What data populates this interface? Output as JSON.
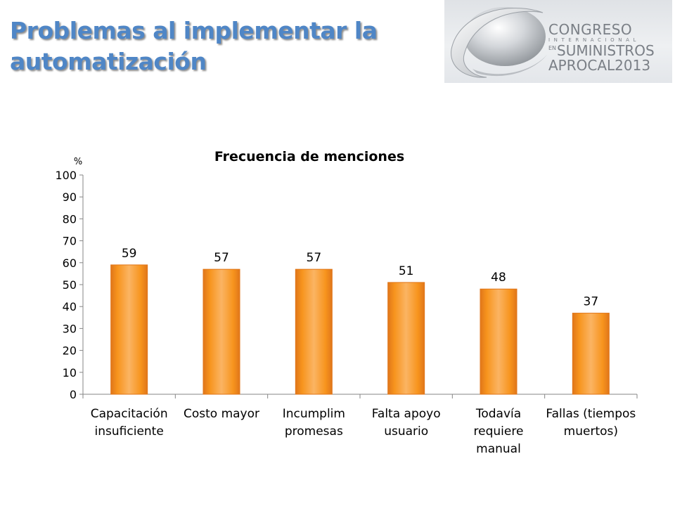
{
  "header": {
    "title_line1": "Problemas al implementar la",
    "title_line2": "automatización"
  },
  "logo": {
    "line1": "CONGRESO",
    "line2": "INTERNACIONAL",
    "line3_small": "EN",
    "line3": "SUMINISTROS",
    "line4": "APROCAL2013",
    "colors": {
      "text": "#7a7f86",
      "background": "#e6e8eb"
    }
  },
  "chart_data": {
    "type": "bar",
    "title": "Frecuencia de menciones",
    "ylabel": "%",
    "xlabel": "",
    "ylim": [
      0,
      100
    ],
    "yticks": [
      0,
      10,
      20,
      30,
      40,
      50,
      60,
      70,
      80,
      90,
      100
    ],
    "categories": [
      [
        "Capacitación",
        "insuficiente"
      ],
      [
        "Costo mayor"
      ],
      [
        "Incumplim",
        "promesas"
      ],
      [
        "Falta apoyo",
        "usuario"
      ],
      [
        "Todavía",
        "requiere",
        "manual"
      ],
      [
        "Fallas (tiempos",
        "muertos)"
      ]
    ],
    "values": [
      59,
      57,
      57,
      51,
      48,
      37
    ],
    "data_labels": [
      "59",
      "57",
      "57",
      "51",
      "48",
      "37"
    ],
    "grid": false,
    "legend": "none",
    "colors": {
      "bar": "#f7941d",
      "bar_light": "#fbb463",
      "bar_dark": "#e0761a",
      "axis": "#868686"
    }
  }
}
